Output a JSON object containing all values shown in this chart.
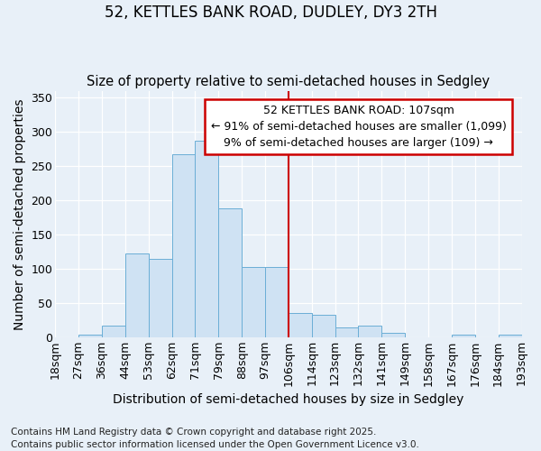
{
  "title_line1": "52, KETTLES BANK ROAD, DUDLEY, DY3 2TH",
  "title_line2": "Size of property relative to semi-detached houses in Sedgley",
  "xlabel": "Distribution of semi-detached houses by size in Sedgley",
  "ylabel": "Number of semi-detached properties",
  "footnote": "Contains HM Land Registry data © Crown copyright and database right 2025.\nContains public sector information licensed under the Open Government Licence v3.0.",
  "bar_labels": [
    "18sqm",
    "27sqm",
    "36sqm",
    "44sqm",
    "53sqm",
    "62sqm",
    "71sqm",
    "79sqm",
    "88sqm",
    "97sqm",
    "106sqm",
    "114sqm",
    "123sqm",
    "132sqm",
    "141sqm",
    "149sqm",
    "158sqm",
    "167sqm",
    "176sqm",
    "184sqm",
    "193sqm"
  ],
  "bar_values": [
    1,
    5,
    18,
    123,
    115,
    268,
    287,
    188,
    103,
    103,
    36,
    33,
    15,
    18,
    7,
    1,
    1,
    5,
    1,
    4
  ],
  "bar_color": "#cfe2f3",
  "bar_edge_color": "#6baed6",
  "vline_color": "#cc0000",
  "annotation_text": "52 KETTLES BANK ROAD: 107sqm\n← 91% of semi-detached houses are smaller (1,099)\n9% of semi-detached houses are larger (109) →",
  "annotation_box_color": "#cc0000",
  "ylim": [
    0,
    360
  ],
  "yticks": [
    0,
    50,
    100,
    150,
    200,
    250,
    300,
    350
  ],
  "background_color": "#e8f0f8",
  "grid_color": "#ffffff",
  "title_fontsize": 12,
  "subtitle_fontsize": 10.5,
  "axis_label_fontsize": 10,
  "tick_fontsize": 9,
  "annot_fontsize": 9,
  "footnote_fontsize": 7.5
}
